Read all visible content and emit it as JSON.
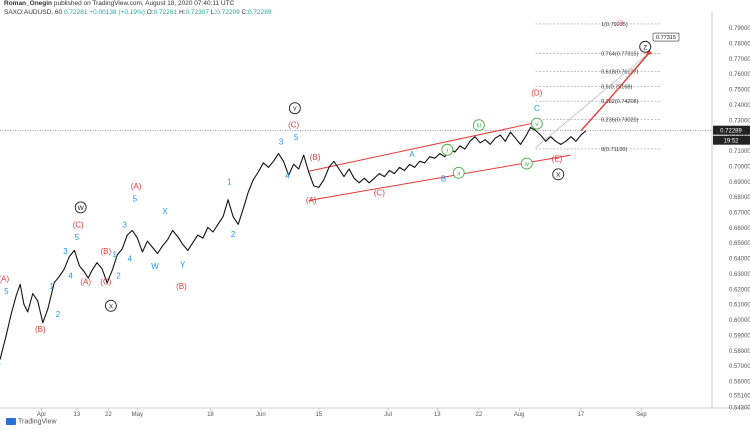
{
  "header": {
    "author": "Roman_Onegin",
    "published": "published on TradingView.com, August 18, 2020 07:40:11 UTC",
    "symbol": "SAXO:AUDUSD, 60",
    "price": "0.72281",
    "change": "+0.00138 (+0.19%)",
    "open_label": "O:",
    "open": "0.72261",
    "high_label": "H:",
    "high": "0.72307",
    "low_label": "L:",
    "low": "0.72209",
    "close_label": "C:",
    "close": "0.72289"
  },
  "footer": {
    "brand": "TradingView"
  },
  "colors": {
    "candles": "#111111",
    "blue_label": "#2196f3",
    "red_label": "#e53935",
    "green_label": "#4caf50",
    "channel": "#e53935",
    "price_tag": "#222222",
    "fib_line": "#9e9e9e"
  },
  "chart_data": {
    "type": "line",
    "title": "",
    "xlabel": "",
    "ylabel": "",
    "x_ticks": [
      {
        "label": "Apr",
        "x": 0.08
      },
      {
        "label": "13",
        "x": 0.36
      },
      {
        "label": "22",
        "x": 0.61
      },
      {
        "label": "May",
        "x": 0.84
      },
      {
        "label": "18",
        "x": 1.42
      },
      {
        "label": "Jun",
        "x": 1.82
      },
      {
        "label": "15",
        "x": 2.28
      },
      {
        "label": "Jul",
        "x": 2.83
      },
      {
        "label": "13",
        "x": 3.22
      },
      {
        "label": "22",
        "x": 3.55
      },
      {
        "label": "Aug",
        "x": 3.87
      },
      {
        "label": "17",
        "x": 4.36
      },
      {
        "label": "Sep",
        "x": 4.84
      }
    ],
    "xlim": [
      -0.25,
      5.4
    ],
    "ylim": [
      0.5425,
      0.7975
    ],
    "y_ticks": [
      "0.79000",
      "0.78000",
      "0.77000",
      "0.76000",
      "0.75000",
      "0.74000",
      "0.73000",
      "0.72000",
      "0.71000",
      "0.70000",
      "0.69000",
      "0.68000",
      "0.67000",
      "0.66000",
      "0.65000",
      "0.64000",
      "0.63000",
      "0.62000",
      "0.61000",
      "0.60000",
      "0.59000",
      "0.58000",
      "0.57000",
      "0.56000",
      "0.55100",
      "0.54300"
    ],
    "price_tag": "0.72289",
    "countdown": "19:52",
    "series": [
      {
        "values": [
          [
            -0.25,
            0.574
          ],
          [
            -0.2,
            0.59
          ],
          [
            -0.16,
            0.604
          ],
          [
            -0.12,
            0.616
          ],
          [
            -0.09,
            0.623
          ],
          [
            -0.06,
            0.61
          ],
          [
            -0.03,
            0.605
          ],
          [
            0.01,
            0.617
          ],
          [
            0.05,
            0.612
          ],
          [
            0.09,
            0.598
          ],
          [
            0.13,
            0.607
          ],
          [
            0.18,
            0.624
          ],
          [
            0.22,
            0.628
          ],
          [
            0.26,
            0.633
          ],
          [
            0.3,
            0.641
          ],
          [
            0.34,
            0.645
          ],
          [
            0.38,
            0.635
          ],
          [
            0.42,
            0.631
          ],
          [
            0.45,
            0.627
          ],
          [
            0.48,
            0.632
          ],
          [
            0.52,
            0.637
          ],
          [
            0.56,
            0.633
          ],
          [
            0.6,
            0.624
          ],
          [
            0.64,
            0.632
          ],
          [
            0.68,
            0.642
          ],
          [
            0.72,
            0.646
          ],
          [
            0.76,
            0.655
          ],
          [
            0.8,
            0.658
          ],
          [
            0.84,
            0.653
          ],
          [
            0.88,
            0.644
          ],
          [
            0.92,
            0.651
          ],
          [
            0.96,
            0.647
          ],
          [
            1.0,
            0.643
          ],
          [
            1.04,
            0.648
          ],
          [
            1.08,
            0.652
          ],
          [
            1.12,
            0.658
          ],
          [
            1.16,
            0.654
          ],
          [
            1.2,
            0.649
          ],
          [
            1.24,
            0.645
          ],
          [
            1.28,
            0.65
          ],
          [
            1.32,
            0.655
          ],
          [
            1.36,
            0.653
          ],
          [
            1.4,
            0.66
          ],
          [
            1.44,
            0.657
          ],
          [
            1.48,
            0.662
          ],
          [
            1.52,
            0.667
          ],
          [
            1.56,
            0.678
          ],
          [
            1.6,
            0.667
          ],
          [
            1.64,
            0.662
          ],
          [
            1.68,
            0.672
          ],
          [
            1.72,
            0.683
          ],
          [
            1.76,
            0.691
          ],
          [
            1.8,
            0.696
          ],
          [
            1.84,
            0.702
          ],
          [
            1.88,
            0.699
          ],
          [
            1.92,
            0.703
          ],
          [
            1.96,
            0.708
          ],
          [
            2.0,
            0.703
          ],
          [
            2.04,
            0.694
          ],
          [
            2.08,
            0.701
          ],
          [
            2.12,
            0.698
          ],
          [
            2.16,
            0.707
          ],
          [
            2.2,
            0.696
          ],
          [
            2.24,
            0.687
          ],
          [
            2.28,
            0.686
          ],
          [
            2.32,
            0.691
          ],
          [
            2.36,
            0.699
          ],
          [
            2.4,
            0.703
          ],
          [
            2.44,
            0.698
          ],
          [
            2.48,
            0.693
          ],
          [
            2.52,
            0.698
          ],
          [
            2.56,
            0.692
          ],
          [
            2.6,
            0.689
          ],
          [
            2.64,
            0.692
          ],
          [
            2.68,
            0.689
          ],
          [
            2.72,
            0.692
          ],
          [
            2.76,
            0.695
          ],
          [
            2.8,
            0.693
          ],
          [
            2.84,
            0.697
          ],
          [
            2.88,
            0.695
          ],
          [
            2.92,
            0.699
          ],
          [
            2.96,
            0.697
          ],
          [
            3.0,
            0.701
          ],
          [
            3.04,
            0.699
          ],
          [
            3.08,
            0.703
          ],
          [
            3.12,
            0.702
          ],
          [
            3.16,
            0.706
          ],
          [
            3.2,
            0.705
          ],
          [
            3.24,
            0.708
          ],
          [
            3.28,
            0.706
          ],
          [
            3.32,
            0.711
          ],
          [
            3.36,
            0.709
          ],
          [
            3.4,
            0.713
          ],
          [
            3.44,
            0.711
          ],
          [
            3.48,
            0.716
          ],
          [
            3.52,
            0.719
          ],
          [
            3.56,
            0.715
          ],
          [
            3.6,
            0.717
          ],
          [
            3.64,
            0.714
          ],
          [
            3.68,
            0.718
          ],
          [
            3.72,
            0.72
          ],
          [
            3.76,
            0.716
          ],
          [
            3.8,
            0.722
          ],
          [
            3.84,
            0.718
          ],
          [
            3.88,
            0.714
          ],
          [
            3.92,
            0.719
          ],
          [
            3.96,
            0.725
          ],
          [
            4.0,
            0.723
          ],
          [
            4.04,
            0.72
          ],
          [
            4.08,
            0.716
          ],
          [
            4.12,
            0.719
          ],
          [
            4.16,
            0.716
          ],
          [
            4.2,
            0.714
          ],
          [
            4.24,
            0.716
          ],
          [
            4.28,
            0.719
          ],
          [
            4.32,
            0.716
          ],
          [
            4.36,
            0.72
          ],
          [
            4.4,
            0.7229
          ]
        ]
      }
    ],
    "channel_lines": [
      {
        "from": [
          2.2,
          0.6965
        ],
        "to": [
          4.02,
          0.7285
        ]
      },
      {
        "from": [
          2.2,
          0.6775
        ],
        "to": [
          4.28,
          0.707
        ]
      }
    ],
    "projection_path": [
      [
        4.36,
        0.7229
      ],
      [
        4.58,
        0.743
      ],
      [
        4.9,
        0.7734
      ]
    ],
    "projection_label": "0.77315",
    "projection_guide": {
      "from": [
        4.0,
        0.7118
      ],
      "to": [
        4.9,
        0.7734
      ]
    },
    "fib_levels": [
      {
        "label": "1(0.79235)",
        "value": 0.79235
      },
      {
        "label": "0.764(0.77315)",
        "value": 0.77315
      },
      {
        "label": "0.618(0.76127)",
        "value": 0.76127
      },
      {
        "label": "0.5(0.75168)",
        "value": 0.75168
      },
      {
        "label": "0.382(0.74208)",
        "value": 0.74208
      },
      {
        "label": "0.236(0.73020)",
        "value": 0.7302
      },
      {
        "label": "0(0.71100)",
        "value": 0.711
      }
    ],
    "fib_x_range": [
      4.0,
      5.0
    ],
    "wave_labels": [
      {
        "text": "(A)",
        "x": -0.22,
        "y": 0.6265,
        "color": "red",
        "circle": false
      },
      {
        "text": "5",
        "x": -0.2,
        "y": 0.6185,
        "color": "blue",
        "circle": false
      },
      {
        "text": "3",
        "x": -0.3,
        "y": 0.604,
        "color": "blue",
        "circle": false
      },
      {
        "text": "4",
        "x": -0.26,
        "y": 0.572,
        "color": "blue",
        "circle": false
      },
      {
        "text": "(B)",
        "x": 0.07,
        "y": 0.5935,
        "color": "red",
        "circle": false
      },
      {
        "text": "1",
        "x": 0.16,
        "y": 0.6215,
        "color": "blue",
        "circle": false
      },
      {
        "text": "2",
        "x": 0.21,
        "y": 0.6035,
        "color": "blue",
        "circle": false
      },
      {
        "text": "3",
        "x": 0.27,
        "y": 0.6445,
        "color": "blue",
        "circle": false
      },
      {
        "text": "4",
        "x": 0.31,
        "y": 0.6285,
        "color": "blue",
        "circle": false
      },
      {
        "text": "5",
        "x": 0.36,
        "y": 0.6535,
        "color": "blue",
        "circle": false
      },
      {
        "text": "(C)",
        "x": 0.37,
        "y": 0.6615,
        "color": "red",
        "circle": false
      },
      {
        "text": "W",
        "x": 0.39,
        "y": 0.673,
        "color": "black",
        "circle": true
      },
      {
        "text": "(A)",
        "x": 0.43,
        "y": 0.6245,
        "color": "red",
        "circle": false
      },
      {
        "text": "(B)",
        "x": 0.59,
        "y": 0.6445,
        "color": "red",
        "circle": false
      },
      {
        "text": "1",
        "x": 0.66,
        "y": 0.6425,
        "color": "blue",
        "circle": false
      },
      {
        "text": "2",
        "x": 0.69,
        "y": 0.6285,
        "color": "blue",
        "circle": false
      },
      {
        "text": "(C)",
        "x": 0.59,
        "y": 0.6245,
        "color": "red",
        "circle": false
      },
      {
        "text": "X",
        "x": 0.63,
        "y": 0.609,
        "color": "black",
        "circle": true
      },
      {
        "text": "3",
        "x": 0.74,
        "y": 0.6615,
        "color": "blue",
        "circle": false
      },
      {
        "text": "4",
        "x": 0.78,
        "y": 0.6395,
        "color": "blue",
        "circle": false
      },
      {
        "text": "5",
        "x": 0.82,
        "y": 0.6785,
        "color": "blue",
        "circle": false
      },
      {
        "text": "(A)",
        "x": 0.83,
        "y": 0.6865,
        "color": "red",
        "circle": false
      },
      {
        "text": "W",
        "x": 0.98,
        "y": 0.6345,
        "color": "blue",
        "circle": false
      },
      {
        "text": "X",
        "x": 1.06,
        "y": 0.6705,
        "color": "blue",
        "circle": false
      },
      {
        "text": "Y",
        "x": 1.2,
        "y": 0.6355,
        "color": "blue",
        "circle": false
      },
      {
        "text": "(B)",
        "x": 1.19,
        "y": 0.6215,
        "color": "red",
        "circle": false
      },
      {
        "text": "1",
        "x": 1.57,
        "y": 0.6895,
        "color": "blue",
        "circle": false
      },
      {
        "text": "2",
        "x": 1.6,
        "y": 0.6555,
        "color": "blue",
        "circle": false
      },
      {
        "text": "3",
        "x": 1.98,
        "y": 0.7155,
        "color": "blue",
        "circle": false
      },
      {
        "text": "4",
        "x": 2.03,
        "y": 0.6935,
        "color": "blue",
        "circle": false
      },
      {
        "text": "5",
        "x": 2.1,
        "y": 0.7185,
        "color": "blue",
        "circle": false
      },
      {
        "text": "(C)",
        "x": 2.08,
        "y": 0.7265,
        "color": "red",
        "circle": false
      },
      {
        "text": "Y",
        "x": 2.09,
        "y": 0.7375,
        "color": "black",
        "circle": true
      },
      {
        "text": "(B)",
        "x": 2.25,
        "y": 0.7055,
        "color": "red",
        "circle": false
      },
      {
        "text": "(A)",
        "x": 2.22,
        "y": 0.6775,
        "color": "red",
        "circle": false
      },
      {
        "text": "(C)",
        "x": 2.76,
        "y": 0.6825,
        "color": "red",
        "circle": false
      },
      {
        "text": "A",
        "x": 3.02,
        "y": 0.7075,
        "color": "blue",
        "circle": false
      },
      {
        "text": "B",
        "x": 3.27,
        "y": 0.6915,
        "color": "blue",
        "circle": false
      },
      {
        "text": "i",
        "x": 3.3,
        "y": 0.7105,
        "color": "green",
        "circle": true
      },
      {
        "text": "ii",
        "x": 3.39,
        "y": 0.6955,
        "color": "green",
        "circle": true
      },
      {
        "text": "iii",
        "x": 3.55,
        "y": 0.7265,
        "color": "green",
        "circle": true
      },
      {
        "text": "iv",
        "x": 3.93,
        "y": 0.7015,
        "color": "green",
        "circle": true
      },
      {
        "text": "v",
        "x": 4.01,
        "y": 0.7275,
        "color": "green",
        "circle": true
      },
      {
        "text": "(D)",
        "x": 4.01,
        "y": 0.7475,
        "color": "red",
        "circle": false
      },
      {
        "text": "C",
        "x": 4.01,
        "y": 0.7375,
        "color": "blue",
        "circle": false
      },
      {
        "text": "(E)",
        "x": 4.17,
        "y": 0.7045,
        "color": "red",
        "circle": false
      },
      {
        "text": "X",
        "x": 4.18,
        "y": 0.6945,
        "color": "black",
        "circle": true
      },
      {
        "text": "Z",
        "x": 4.87,
        "y": 0.7775,
        "color": "black",
        "circle": true
      }
    ]
  }
}
